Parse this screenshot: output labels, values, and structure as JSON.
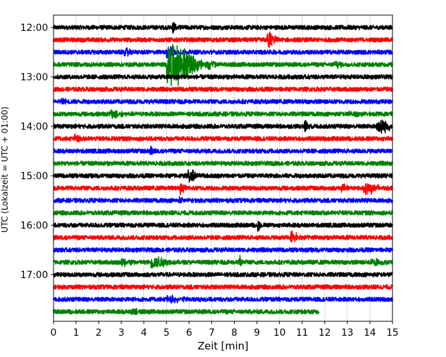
{
  "chart_data": {
    "type": "line",
    "title": "",
    "xlabel": "Zeit  [min]",
    "ylabel": "UTC (Lokalzeit = UTC + 01:00)",
    "xlim": [
      0,
      15
    ],
    "x_ticks": [
      "0",
      "1",
      "2",
      "3",
      "4",
      "5",
      "6",
      "7",
      "8",
      "9",
      "10",
      "11",
      "12",
      "13",
      "14",
      "15"
    ],
    "y_tick_labels": [
      "12:00",
      "13:00",
      "14:00",
      "15:00",
      "16:00",
      "17:00"
    ],
    "grid_x": "dotted",
    "line_interval_minutes": 15,
    "color_cycle": [
      "#000000",
      "#ff0000",
      "#0000ff",
      "#008000"
    ],
    "traces": [
      {
        "start": "12:00",
        "end_min": 15,
        "noise": 0.35,
        "events": [
          {
            "t": 5.3,
            "amp": 1.2,
            "dur": 0.1
          }
        ]
      },
      {
        "start": "12:15",
        "end_min": 15,
        "noise": 0.35,
        "events": [
          {
            "t": 9.55,
            "amp": 1.3,
            "dur": 0.25
          }
        ]
      },
      {
        "start": "12:30",
        "end_min": 15,
        "noise": 0.35,
        "events": [
          {
            "t": 3.2,
            "amp": 0.6,
            "dur": 0.2
          },
          {
            "t": 5.1,
            "amp": 0.8,
            "dur": 0.3
          }
        ]
      },
      {
        "start": "12:45",
        "end_min": 15,
        "noise": 0.35,
        "events": [
          {
            "t": 5.35,
            "amp": 3.2,
            "dur": 0.9
          },
          {
            "t": 6.9,
            "amp": 0.7,
            "dur": 0.25
          },
          {
            "t": 12.5,
            "amp": 0.4,
            "dur": 0.3
          }
        ]
      },
      {
        "start": "13:00",
        "end_min": 15,
        "noise": 0.35,
        "events": []
      },
      {
        "start": "13:15",
        "end_min": 15,
        "noise": 0.35,
        "events": []
      },
      {
        "start": "13:30",
        "end_min": 15,
        "noise": 0.35,
        "events": [
          {
            "t": 0.4,
            "amp": 0.6,
            "dur": 0.15
          }
        ]
      },
      {
        "start": "13:45",
        "end_min": 15,
        "noise": 0.35,
        "events": [
          {
            "t": 2.65,
            "amp": 0.7,
            "dur": 0.3
          },
          {
            "t": 13.2,
            "amp": 0.3,
            "dur": 0.4
          }
        ]
      },
      {
        "start": "14:00",
        "end_min": 15,
        "noise": 0.35,
        "events": [
          {
            "t": 11.15,
            "amp": 0.9,
            "dur": 0.12
          },
          {
            "t": 14.45,
            "amp": 1.1,
            "dur": 0.45
          }
        ]
      },
      {
        "start": "14:15",
        "end_min": 15,
        "noise": 0.35,
        "events": [
          {
            "t": 1.0,
            "amp": 0.6,
            "dur": 0.15
          }
        ]
      },
      {
        "start": "14:30",
        "end_min": 15,
        "noise": 0.35,
        "events": [
          {
            "t": 4.3,
            "amp": 0.8,
            "dur": 0.1
          }
        ]
      },
      {
        "start": "14:45",
        "end_min": 15,
        "noise": 0.35,
        "events": []
      },
      {
        "start": "15:00",
        "end_min": 15,
        "noise": 0.35,
        "events": [
          {
            "t": 6.05,
            "amp": 0.9,
            "dur": 0.25
          }
        ]
      },
      {
        "start": "15:15",
        "end_min": 15,
        "noise": 0.35,
        "events": [
          {
            "t": 5.65,
            "amp": 0.9,
            "dur": 0.15
          },
          {
            "t": 12.8,
            "amp": 0.6,
            "dur": 0.15
          },
          {
            "t": 13.9,
            "amp": 0.8,
            "dur": 0.5
          }
        ]
      },
      {
        "start": "15:30",
        "end_min": 15,
        "noise": 0.35,
        "events": [
          {
            "t": 5.6,
            "amp": 0.5,
            "dur": 0.1
          }
        ]
      },
      {
        "start": "15:45",
        "end_min": 15,
        "noise": 0.35,
        "events": []
      },
      {
        "start": "16:00",
        "end_min": 15,
        "noise": 0.35,
        "events": [
          {
            "t": 9.05,
            "amp": 1.0,
            "dur": 0.1
          }
        ]
      },
      {
        "start": "16:15",
        "end_min": 15,
        "noise": 0.35,
        "events": [
          {
            "t": 10.6,
            "amp": 0.9,
            "dur": 0.3
          }
        ]
      },
      {
        "start": "16:30",
        "end_min": 15,
        "noise": 0.35,
        "events": []
      },
      {
        "start": "16:45",
        "end_min": 15,
        "noise": 0.35,
        "events": [
          {
            "t": 3.1,
            "amp": 0.6,
            "dur": 0.3
          },
          {
            "t": 4.5,
            "amp": 0.8,
            "dur": 0.6
          },
          {
            "t": 8.25,
            "amp": 1.1,
            "dur": 0.08
          },
          {
            "t": 14.2,
            "amp": 0.5,
            "dur": 0.4
          }
        ]
      },
      {
        "start": "17:00",
        "end_min": 15,
        "noise": 0.35,
        "events": []
      },
      {
        "start": "17:15",
        "end_min": 15,
        "noise": 0.35,
        "events": []
      },
      {
        "start": "17:30",
        "end_min": 15,
        "noise": 0.35,
        "events": [
          {
            "t": 5.2,
            "amp": 0.4,
            "dur": 0.6
          }
        ]
      },
      {
        "start": "17:45",
        "end_min": 11.75,
        "noise": 0.35,
        "events": [
          {
            "t": 3.5,
            "amp": 0.5,
            "dur": 0.2
          }
        ]
      }
    ]
  }
}
